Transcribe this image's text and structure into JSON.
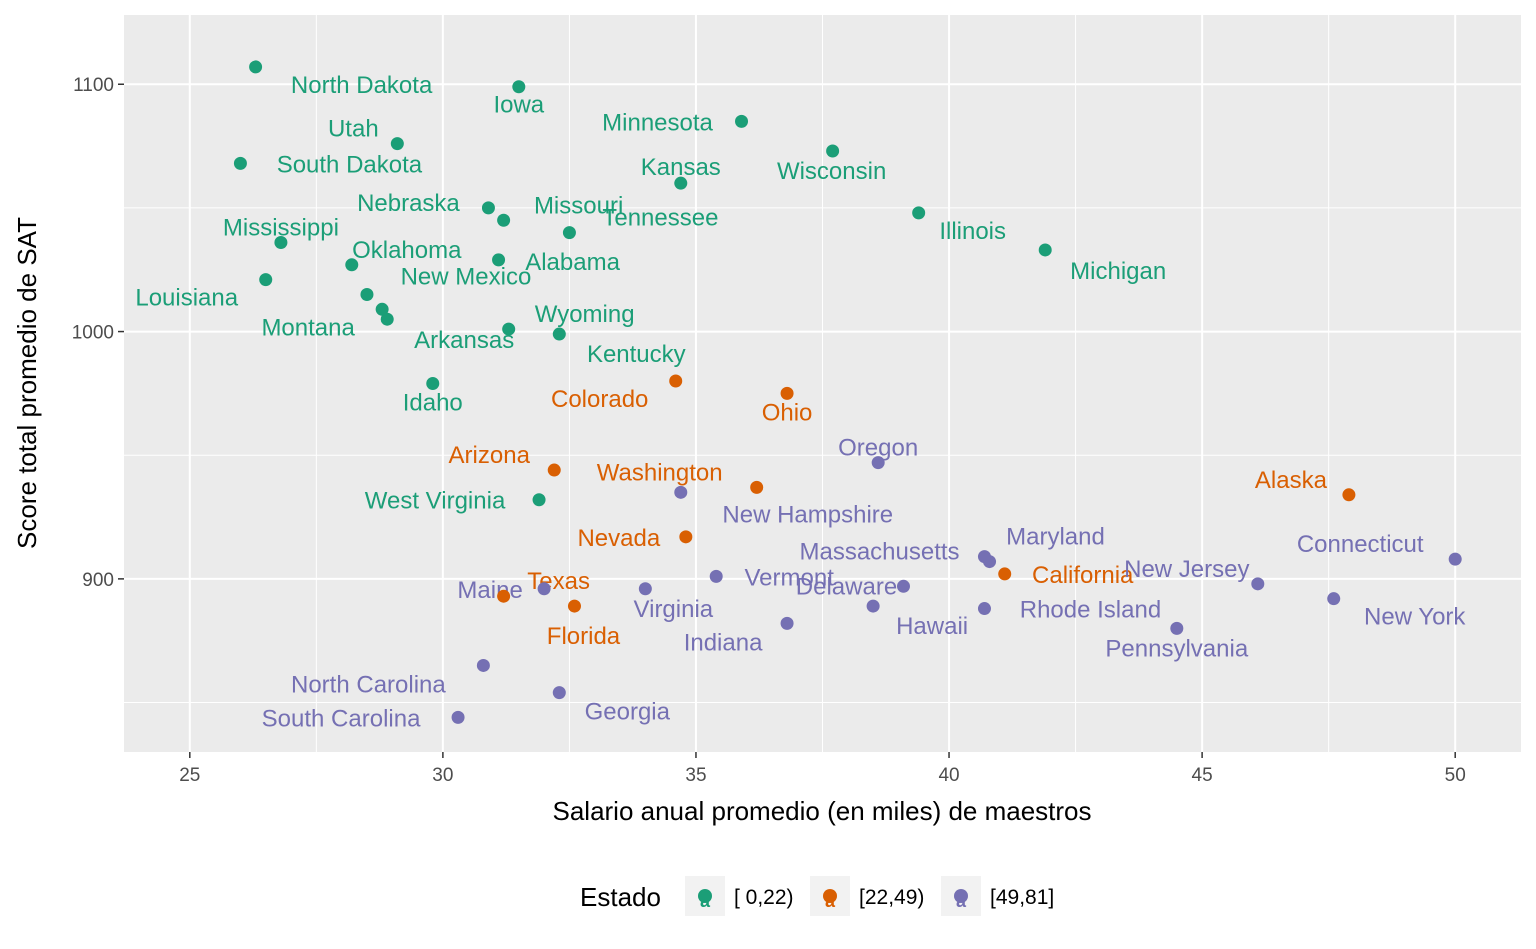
{
  "chart_data": {
    "type": "scatter",
    "title": "",
    "xlabel": "Salario anual promedio (en miles) de maestros",
    "ylabel": "Score total promedio de SAT",
    "xlim": [
      23.7,
      51.3
    ],
    "ylim": [
      830,
      1128
    ],
    "x_ticks": [
      25,
      30,
      35,
      40,
      45,
      50
    ],
    "y_ticks": [
      900,
      1000,
      1100
    ],
    "grid": true,
    "legend": {
      "title": "Estado",
      "position": "bottom",
      "entries": [
        {
          "label": "[ 0,22)",
          "color": "#1b9e77"
        },
        {
          "label": "[22,49)",
          "color": "#d95f02"
        },
        {
          "label": "[49,81]",
          "color": "#7570b3"
        }
      ]
    },
    "groups": [
      {
        "label": "[ 0,22)",
        "color": "#1b9e77",
        "points": [
          {
            "name": "North Dakota",
            "x": 26.3,
            "y": 1107
          },
          {
            "name": "Iowa",
            "x": 31.5,
            "y": 1099
          },
          {
            "name": "Minnesota",
            "x": 35.9,
            "y": 1085
          },
          {
            "name": "Utah",
            "x": 29.1,
            "y": 1076
          },
          {
            "name": "South Dakota",
            "x": 26.0,
            "y": 1068
          },
          {
            "name": "Wisconsin",
            "x": 37.7,
            "y": 1073
          },
          {
            "name": "Kansas",
            "x": 34.7,
            "y": 1060
          },
          {
            "name": "Nebraska",
            "x": 30.9,
            "y": 1050
          },
          {
            "name": "Missouri",
            "x": 31.2,
            "y": 1045
          },
          {
            "name": "Illinois",
            "x": 39.4,
            "y": 1048
          },
          {
            "name": "Tennessee",
            "x": 32.5,
            "y": 1040
          },
          {
            "name": "Michigan",
            "x": 41.9,
            "y": 1033
          },
          {
            "name": "Mississippi",
            "x": 26.8,
            "y": 1036
          },
          {
            "name": "Oklahoma",
            "x": 28.2,
            "y": 1027
          },
          {
            "name": "Alabama",
            "x": 31.1,
            "y": 1029
          },
          {
            "name": "Louisiana",
            "x": 26.5,
            "y": 1021
          },
          {
            "name": "New Mexico",
            "x": 28.5,
            "y": 1015
          },
          {
            "name": "Montana",
            "x": 28.8,
            "y": 1009
          },
          {
            "name": "Arkansas",
            "x": 28.9,
            "y": 1005
          },
          {
            "name": "Wyoming",
            "x": 31.3,
            "y": 1001
          },
          {
            "name": "Kentucky",
            "x": 32.3,
            "y": 999
          },
          {
            "name": "Idaho",
            "x": 29.8,
            "y": 979
          },
          {
            "name": "West Virginia",
            "x": 31.9,
            "y": 932
          }
        ]
      },
      {
        "label": "[22,49)",
        "color": "#d95f02",
        "points": [
          {
            "name": "Colorado",
            "x": 34.6,
            "y": 980
          },
          {
            "name": "Ohio",
            "x": 36.8,
            "y": 975
          },
          {
            "name": "Arizona",
            "x": 32.2,
            "y": 944
          },
          {
            "name": "Washington",
            "x": 36.2,
            "y": 937
          },
          {
            "name": "Alaska",
            "x": 47.9,
            "y": 934
          },
          {
            "name": "Nevada",
            "x": 34.8,
            "y": 917
          },
          {
            "name": "California",
            "x": 41.1,
            "y": 902
          },
          {
            "name": "Texas",
            "x": 31.2,
            "y": 893
          },
          {
            "name": "Florida",
            "x": 32.6,
            "y": 889
          }
        ]
      },
      {
        "label": "[49,81]",
        "color": "#7570b3",
        "points": [
          {
            "name": "Oregon",
            "x": 38.6,
            "y": 947
          },
          {
            "name": "New Hampshire",
            "x": 34.7,
            "y": 935
          },
          {
            "name": "Massachusetts",
            "x": 40.8,
            "y": 907
          },
          {
            "name": "Maryland",
            "x": 40.7,
            "y": 909
          },
          {
            "name": "Connecticut",
            "x": 50.0,
            "y": 908
          },
          {
            "name": "New Jersey",
            "x": 46.1,
            "y": 898
          },
          {
            "name": "Vermont",
            "x": 35.4,
            "y": 901
          },
          {
            "name": "Maine",
            "x": 32.0,
            "y": 896
          },
          {
            "name": "Virginia",
            "x": 34.0,
            "y": 896
          },
          {
            "name": "Delaware",
            "x": 39.1,
            "y": 897
          },
          {
            "name": "New York",
            "x": 47.6,
            "y": 892
          },
          {
            "name": "Hawaii",
            "x": 38.5,
            "y": 889
          },
          {
            "name": "Rhode Island",
            "x": 40.7,
            "y": 888
          },
          {
            "name": "Indiana",
            "x": 36.8,
            "y": 882
          },
          {
            "name": "Pennsylvania",
            "x": 44.5,
            "y": 880
          },
          {
            "name": "North Carolina",
            "x": 30.8,
            "y": 865
          },
          {
            "name": "Georgia",
            "x": 32.3,
            "y": 854
          },
          {
            "name": "South Carolina",
            "x": 30.3,
            "y": 844
          }
        ]
      }
    ]
  }
}
